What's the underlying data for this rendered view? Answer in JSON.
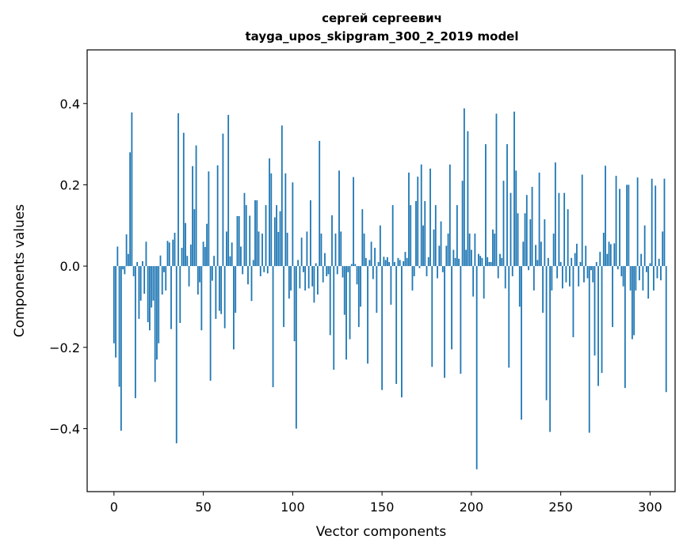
{
  "chart_data": {
    "type": "bar",
    "title_line1": "сергей сергеевич",
    "title_line2": "tayga_upos_skipgram_300_2_2019 model",
    "xlabel": "Vector components",
    "ylabel": "Components values",
    "xlim": [
      -15,
      314
    ],
    "ylim": [
      -0.555,
      0.532
    ],
    "xticks": [
      0,
      50,
      100,
      150,
      200,
      250,
      300
    ],
    "xtick_labels": [
      "0",
      "50",
      "100",
      "150",
      "200",
      "250",
      "300"
    ],
    "yticks": [
      -0.4,
      -0.2,
      0.0,
      0.2,
      0.4
    ],
    "ytick_labels": [
      "−0.4",
      "−0.2",
      "0.0",
      "0.2",
      "0.4"
    ],
    "bar_color": "#1f77b4",
    "grid": false,
    "legend": "none",
    "values": [
      -0.19,
      -0.225,
      0.048,
      -0.297,
      -0.405,
      -0.008,
      -0.02,
      0.078,
      0.03,
      0.28,
      0.378,
      -0.025,
      -0.325,
      0.01,
      -0.13,
      -0.085,
      0.012,
      -0.068,
      0.06,
      -0.138,
      -0.158,
      -0.102,
      -0.085,
      -0.285,
      -0.23,
      -0.19,
      0.026,
      -0.07,
      -0.015,
      -0.06,
      0.062,
      0.058,
      -0.155,
      0.065,
      0.082,
      -0.436,
      0.376,
      -0.14,
      0.045,
      0.328,
      0.106,
      0.025,
      -0.05,
      0.053,
      0.246,
      0.14,
      0.297,
      -0.07,
      -0.04,
      -0.158,
      0.06,
      0.047,
      0.104,
      0.233,
      -0.282,
      -0.036,
      0.025,
      -0.13,
      0.248,
      -0.11,
      -0.118,
      0.326,
      -0.153,
      0.085,
      0.372,
      0.024,
      0.058,
      -0.205,
      -0.115,
      0.123,
      0.123,
      0.048,
      -0.02,
      0.18,
      0.15,
      -0.045,
      0.124,
      -0.086,
      0.015,
      0.162,
      0.162,
      0.085,
      -0.025,
      0.08,
      -0.015,
      0.15,
      -0.018,
      0.265,
      0.228,
      -0.298,
      0.12,
      0.15,
      0.084,
      0.135,
      0.346,
      -0.15,
      0.228,
      0.082,
      -0.08,
      -0.06,
      0.206,
      -0.185,
      -0.4,
      0.015,
      -0.055,
      0.07,
      -0.015,
      -0.06,
      0.085,
      -0.055,
      0.162,
      -0.05,
      -0.09,
      0.007,
      -0.07,
      0.308,
      0.08,
      -0.04,
      0.032,
      -0.025,
      -0.02,
      -0.17,
      0.125,
      -0.255,
      0.08,
      -0.02,
      0.235,
      0.085,
      -0.028,
      -0.12,
      -0.23,
      -0.015,
      -0.18,
      0.005,
      0.219,
      0.005,
      -0.045,
      -0.15,
      -0.1,
      0.14,
      0.08,
      0.02,
      -0.24,
      0.015,
      0.06,
      -0.032,
      0.045,
      -0.115,
      0.01,
      0.1,
      -0.305,
      0.023,
      0.015,
      0.022,
      0.01,
      -0.095,
      0.15,
      0.01,
      -0.29,
      0.02,
      0.015,
      -0.323,
      0.012,
      0.035,
      0.02,
      0.23,
      0.15,
      -0.06,
      -0.025,
      0.16,
      0.22,
      -0.005,
      0.25,
      0.1,
      0.16,
      -0.025,
      0.022,
      0.24,
      -0.248,
      0.09,
      0.15,
      -0.03,
      0.05,
      0.11,
      -0.015,
      -0.275,
      0.05,
      0.08,
      0.25,
      -0.205,
      0.04,
      0.02,
      0.15,
      0.018,
      -0.265,
      0.21,
      0.388,
      0.04,
      0.332,
      0.08,
      0.04,
      -0.075,
      0.08,
      -0.5,
      0.03,
      0.025,
      0.02,
      -0.08,
      0.3,
      0.022,
      0.01,
      0.01,
      0.09,
      0.08,
      0.375,
      -0.03,
      0.03,
      0.02,
      0.21,
      -0.055,
      0.3,
      -0.25,
      0.18,
      -0.025,
      0.38,
      0.235,
      0.13,
      -0.1,
      -0.378,
      0.06,
      0.13,
      0.175,
      -0.01,
      0.115,
      0.195,
      -0.06,
      0.052,
      0.015,
      0.23,
      0.06,
      -0.115,
      0.115,
      -0.33,
      0.02,
      -0.408,
      -0.06,
      0.08,
      0.255,
      -0.03,
      0.18,
      0.01,
      -0.055,
      0.18,
      -0.04,
      0.14,
      -0.05,
      0.02,
      -0.175,
      0.032,
      0.055,
      -0.05,
      0.01,
      0.225,
      -0.04,
      0.05,
      -0.03,
      -0.41,
      -0.01,
      -0.04,
      -0.22,
      0.01,
      -0.295,
      0.035,
      -0.263,
      0.082,
      0.247,
      0.03,
      0.06,
      0.054,
      -0.15,
      0.056,
      0.222,
      -0.008,
      0.19,
      -0.025,
      -0.05,
      -0.3,
      0.2,
      0.2,
      -0.06,
      -0.18,
      -0.17,
      -0.06,
      0.218,
      -0.035,
      0.03,
      -0.06,
      0.1,
      -0.015,
      -0.08,
      0.007,
      0.215,
      -0.06,
      0.198,
      -0.03,
      0.018,
      -0.035,
      0.085,
      0.215,
      -0.31
    ]
  }
}
